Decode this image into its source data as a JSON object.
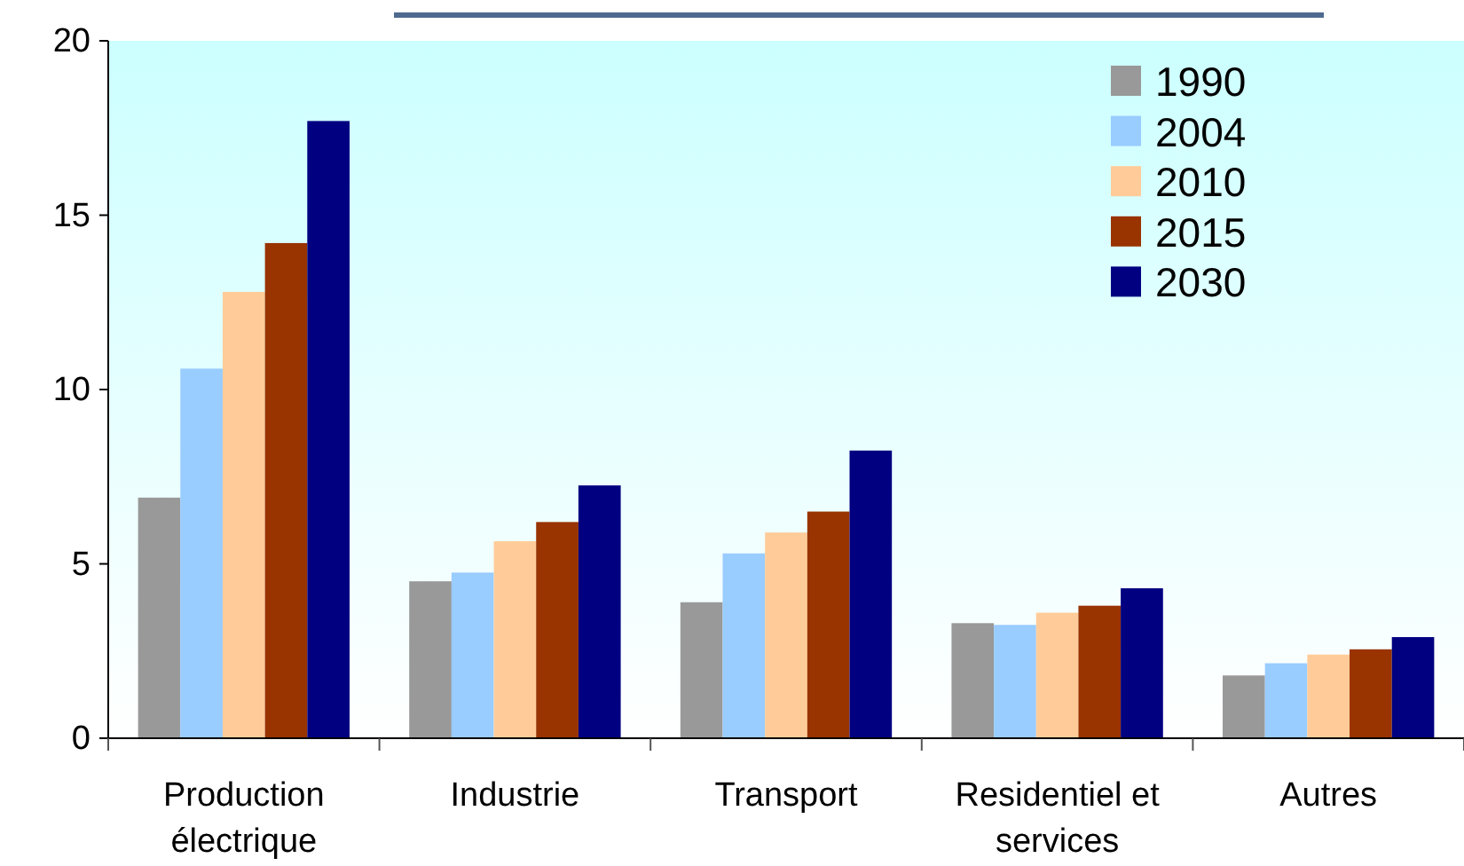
{
  "chart_data": {
    "type": "bar",
    "categories": [
      "Production électrique",
      "Industrie",
      "Transport",
      "Residentiel et services",
      "Autres"
    ],
    "series": [
      {
        "name": "1990",
        "color": "#999999",
        "values": [
          6.9,
          4.5,
          3.9,
          3.3,
          1.8
        ]
      },
      {
        "name": "2004",
        "color": "#99ccff",
        "values": [
          10.6,
          4.75,
          5.3,
          3.25,
          2.15
        ]
      },
      {
        "name": "2010",
        "color": "#ffcc99",
        "values": [
          12.8,
          5.65,
          5.9,
          3.6,
          2.4
        ]
      },
      {
        "name": "2015",
        "color": "#993300",
        "values": [
          14.2,
          6.2,
          6.5,
          3.8,
          2.55
        ]
      },
      {
        "name": "2030",
        "color": "#000080",
        "values": [
          17.7,
          7.25,
          8.25,
          4.3,
          2.9
        ]
      }
    ],
    "ylim": [
      0,
      20
    ],
    "yticks": [
      0,
      5,
      10,
      15,
      20
    ],
    "grid": false,
    "legend": "top right"
  }
}
